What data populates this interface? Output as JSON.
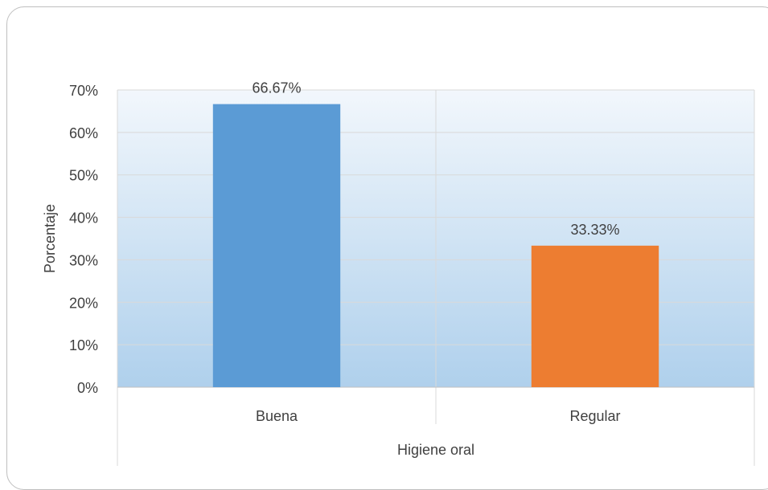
{
  "chart_data": {
    "type": "bar",
    "categories": [
      "Buena",
      "Regular"
    ],
    "values": [
      66.67,
      33.33
    ],
    "value_labels": [
      "66.67%",
      "33.33%"
    ],
    "bar_colors": [
      "#5b9bd5",
      "#ed7d31"
    ],
    "title": "",
    "xlabel": "Higiene oral",
    "ylabel": "Porcentaje",
    "ylim": [
      0,
      70
    ],
    "yticks": [
      0,
      10,
      20,
      30,
      40,
      50,
      60,
      70
    ],
    "ytick_labels": [
      "0%",
      "10%",
      "20%",
      "30%",
      "40%",
      "50%",
      "60%",
      "70%"
    ],
    "grid": true,
    "legend": "none",
    "plot_background": [
      "#f2f7fc",
      "#afd0ec"
    ]
  }
}
